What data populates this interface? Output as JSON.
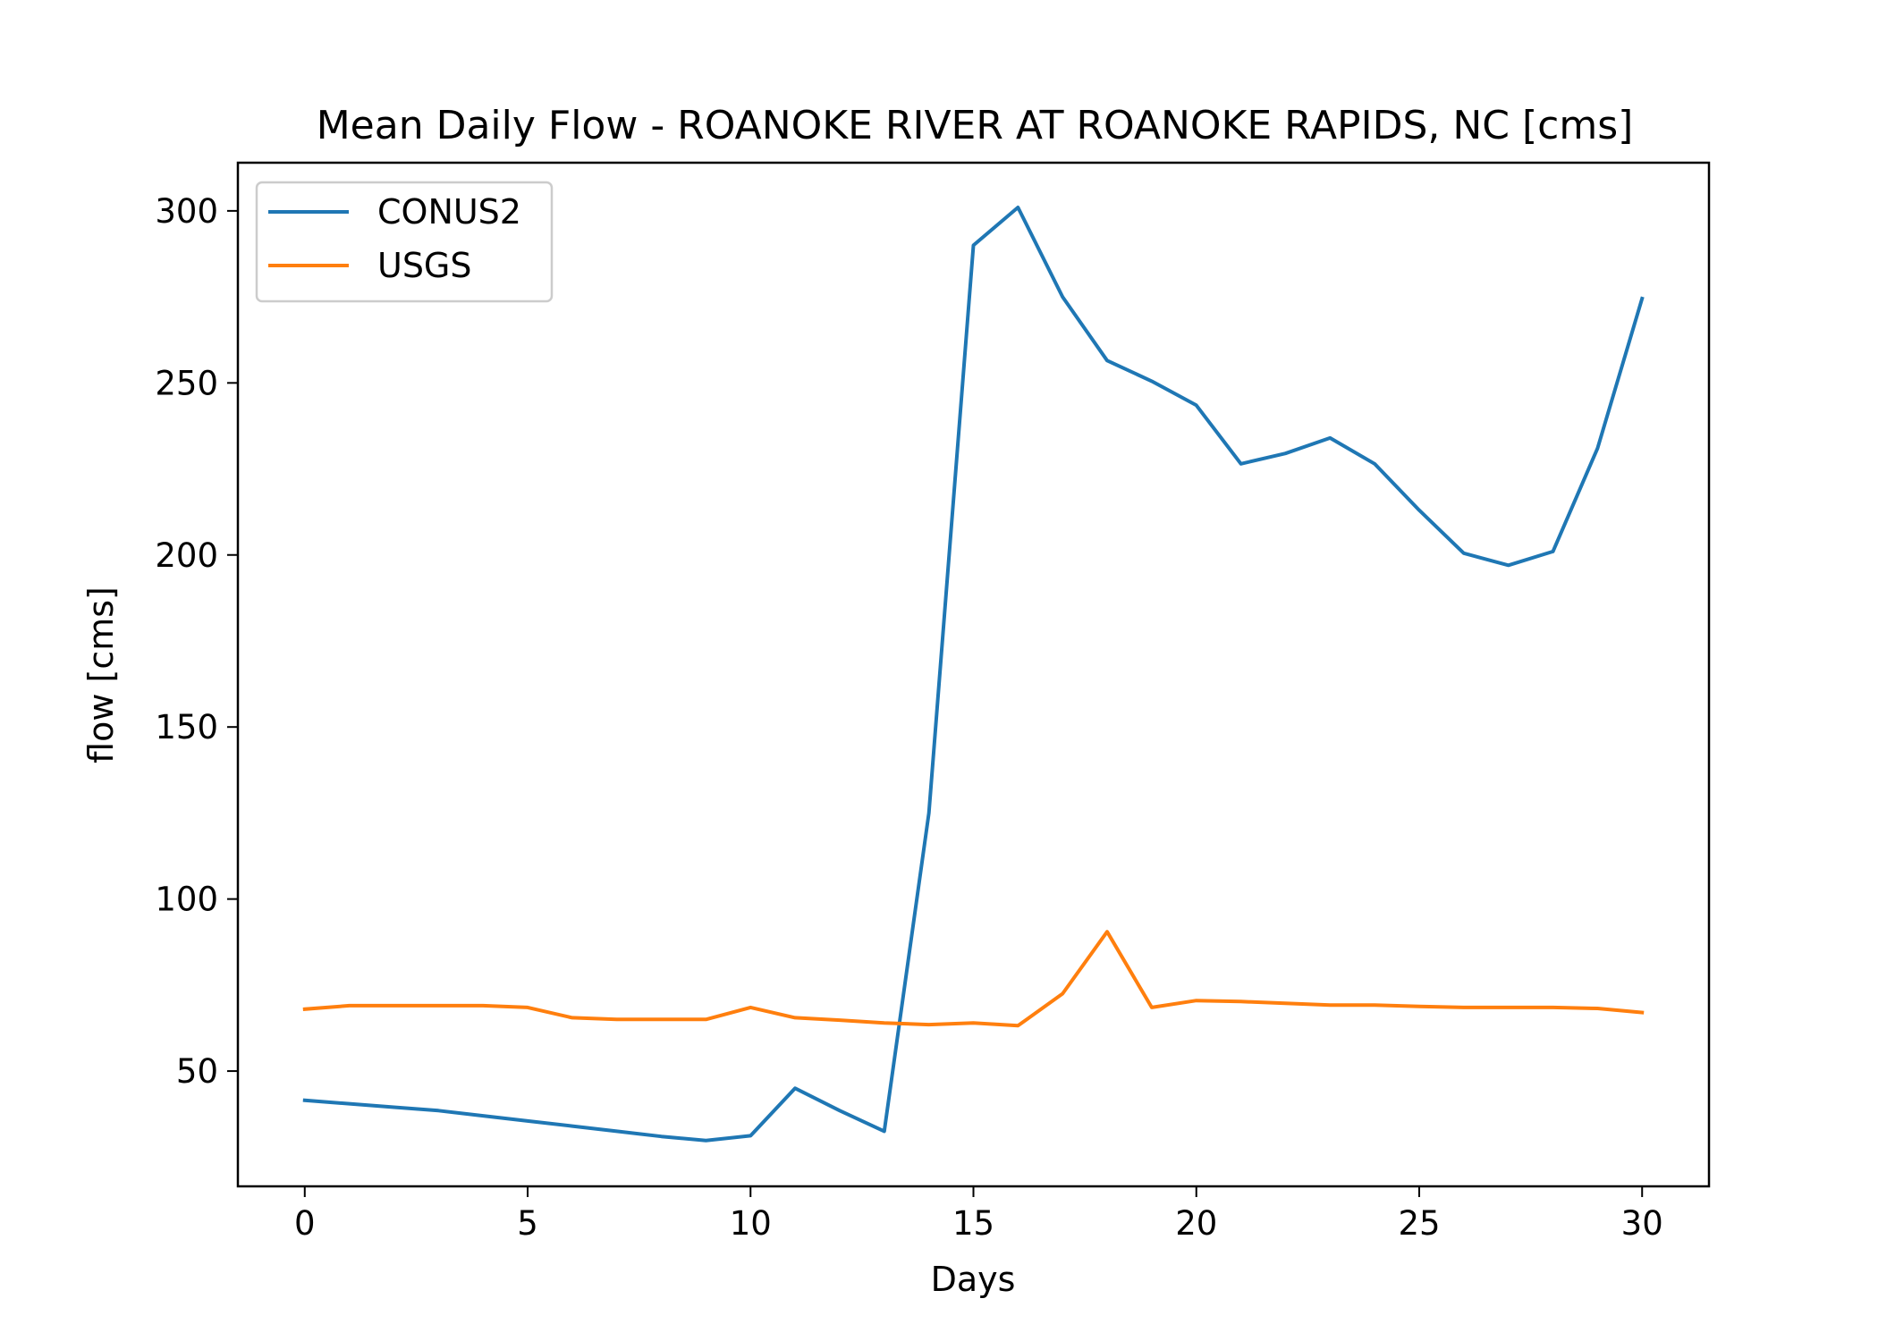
{
  "chart_data": {
    "type": "line",
    "title": "Mean Daily Flow - ROANOKE RIVER AT ROANOKE RAPIDS, NC [cms]",
    "xlabel": "Days",
    "ylabel": "flow [cms]",
    "xlim": [
      -1.5,
      31.5
    ],
    "ylim": [
      16.5,
      314
    ],
    "xticks": [
      0,
      5,
      10,
      15,
      20,
      25,
      30
    ],
    "yticks": [
      50,
      100,
      150,
      200,
      250,
      300
    ],
    "grid": false,
    "legend_position": "top-left",
    "x": [
      0,
      1,
      2,
      3,
      4,
      5,
      6,
      7,
      8,
      9,
      10,
      11,
      12,
      13,
      14,
      15,
      16,
      17,
      18,
      19,
      20,
      21,
      22,
      23,
      24,
      25,
      26,
      27,
      28,
      29,
      30
    ],
    "series": [
      {
        "name": "CONUS2",
        "color": "#1f77b4",
        "values": [
          41.5,
          40.5,
          39.5,
          38.5,
          37,
          35.5,
          34,
          32.5,
          31,
          29.8,
          31.2,
          45,
          38.5,
          32.5,
          125,
          290,
          301,
          275,
          256.5,
          250.5,
          243.5,
          226.5,
          229.5,
          234,
          226.5,
          213,
          200.5,
          197,
          201,
          231,
          274.5
        ]
      },
      {
        "name": "USGS",
        "color": "#ff7f0e",
        "values": [
          68,
          69,
          69,
          69,
          69,
          68.5,
          65.5,
          65,
          65,
          65,
          68.5,
          65.5,
          64.8,
          64,
          63.5,
          64,
          63.2,
          72.5,
          90.5,
          68.5,
          70.5,
          70.2,
          69.7,
          69.2,
          69.2,
          68.8,
          68.5,
          68.5,
          68.5,
          68.2,
          67
        ]
      }
    ]
  }
}
